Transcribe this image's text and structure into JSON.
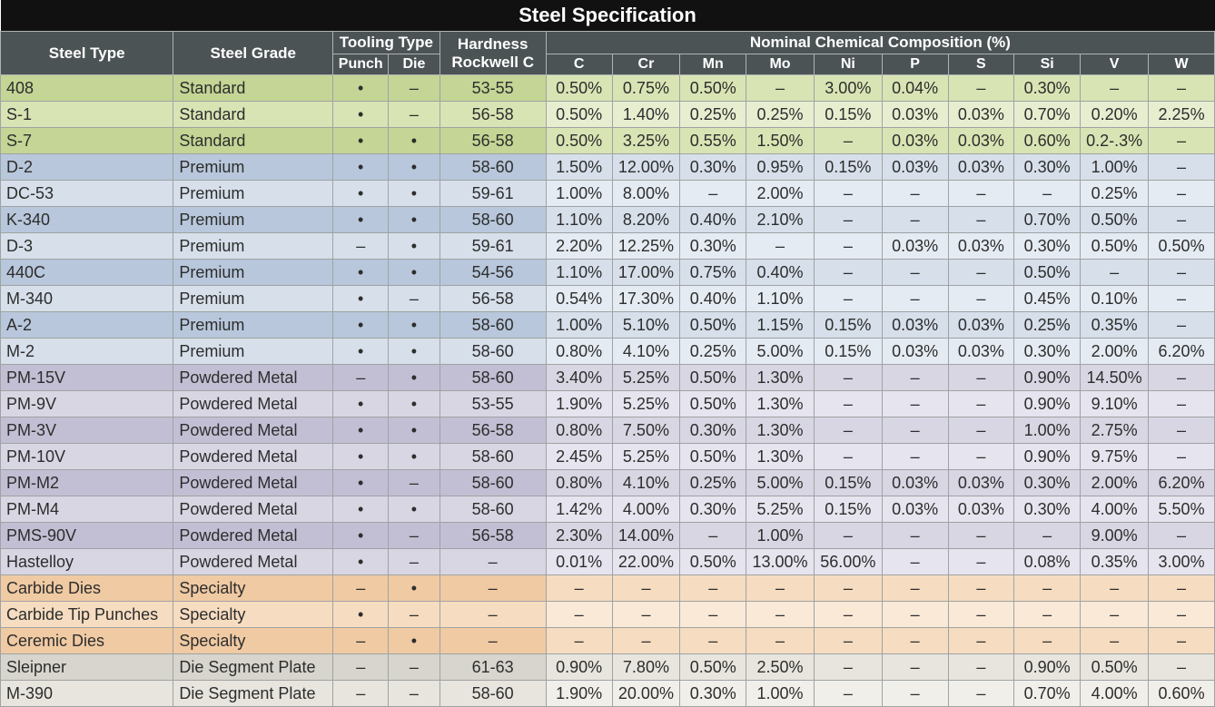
{
  "title": "Steel Specification",
  "headers": {
    "steel_type": "Steel Type",
    "steel_grade": "Steel Grade",
    "tooling_type": "Tooling Type",
    "punch": "Punch",
    "die": "Die",
    "hardness": "Hardness Rockwell C",
    "composition": "Nominal Chemical Composition (%)",
    "comp_cols": [
      "C",
      "Cr",
      "Mn",
      "Mo",
      "Ni",
      "P",
      "S",
      "Si",
      "V",
      "W"
    ]
  },
  "colors": {
    "title_bg": "#111111",
    "header_bg": "#4c5355",
    "header_text": "#ffffff",
    "border": "#9ea3a4",
    "text": "#2d2d2d",
    "grade_bg": {
      "Standard": {
        "light": "#d9e4b4",
        "dark": "#c4d595"
      },
      "Premium": {
        "light": "#d6dfea",
        "dark": "#b8c7db"
      },
      "Powdered Metal": {
        "light": "#d8d6e3",
        "dark": "#c2bfd4"
      },
      "Specialty": {
        "light": "#f6dcc0",
        "dark": "#f0caa3"
      },
      "Die Segment Plate": {
        "light": "#e7e5dd",
        "dark": "#d7d5cd"
      }
    },
    "comp_bg": {
      "Standard": {
        "light": "#e7eed0",
        "dark": "#d9e4b4"
      },
      "Premium": {
        "light": "#e5ebf3",
        "dark": "#d6dfea"
      },
      "Powdered Metal": {
        "light": "#e6e4ee",
        "dark": "#d8d6e3"
      },
      "Specialty": {
        "light": "#fae9d6",
        "dark": "#f6dcc0"
      },
      "Die Segment Plate": {
        "light": "#f1efe9",
        "dark": "#e7e5dd"
      }
    }
  },
  "bullet": "•",
  "dash": "–",
  "rows": [
    {
      "type": "408",
      "grade": "Standard",
      "punch": true,
      "die": false,
      "hardness": "53-55",
      "comp": [
        "0.50%",
        "0.75%",
        "0.50%",
        "–",
        "3.00%",
        "0.04%",
        "–",
        "0.30%",
        "–",
        "–"
      ]
    },
    {
      "type": "S-1",
      "grade": "Standard",
      "punch": true,
      "die": false,
      "hardness": "56-58",
      "comp": [
        "0.50%",
        "1.40%",
        "0.25%",
        "0.25%",
        "0.15%",
        "0.03%",
        "0.03%",
        "0.70%",
        "0.20%",
        "2.25%"
      ]
    },
    {
      "type": "S-7",
      "grade": "Standard",
      "punch": true,
      "die": true,
      "hardness": "56-58",
      "comp": [
        "0.50%",
        "3.25%",
        "0.55%",
        "1.50%",
        "–",
        "0.03%",
        "0.03%",
        "0.60%",
        "0.2-.3%",
        "–"
      ]
    },
    {
      "type": "D-2",
      "grade": "Premium",
      "punch": true,
      "die": true,
      "hardness": "58-60",
      "comp": [
        "1.50%",
        "12.00%",
        "0.30%",
        "0.95%",
        "0.15%",
        "0.03%",
        "0.03%",
        "0.30%",
        "1.00%",
        "–"
      ]
    },
    {
      "type": "DC-53",
      "grade": "Premium",
      "punch": true,
      "die": true,
      "hardness": "59-61",
      "comp": [
        "1.00%",
        "8.00%",
        "–",
        "2.00%",
        "–",
        "–",
        "–",
        "–",
        "0.25%",
        "–"
      ]
    },
    {
      "type": "K-340",
      "grade": "Premium",
      "punch": true,
      "die": true,
      "hardness": "58-60",
      "comp": [
        "1.10%",
        "8.20%",
        "0.40%",
        "2.10%",
        "–",
        "–",
        "–",
        "0.70%",
        "0.50%",
        "–"
      ]
    },
    {
      "type": "D-3",
      "grade": "Premium",
      "punch": false,
      "die": true,
      "hardness": "59-61",
      "comp": [
        "2.20%",
        "12.25%",
        "0.30%",
        "–",
        "–",
        "0.03%",
        "0.03%",
        "0.30%",
        "0.50%",
        "0.50%"
      ]
    },
    {
      "type": "440C",
      "grade": "Premium",
      "punch": true,
      "die": true,
      "hardness": "54-56",
      "comp": [
        "1.10%",
        "17.00%",
        "0.75%",
        "0.40%",
        "–",
        "–",
        "–",
        "0.50%",
        "–",
        "–"
      ]
    },
    {
      "type": "M-340",
      "grade": "Premium",
      "punch": true,
      "die": false,
      "hardness": "56-58",
      "comp": [
        "0.54%",
        "17.30%",
        "0.40%",
        "1.10%",
        "–",
        "–",
        "–",
        "0.45%",
        "0.10%",
        "–"
      ]
    },
    {
      "type": "A-2",
      "grade": "Premium",
      "punch": true,
      "die": true,
      "hardness": "58-60",
      "comp": [
        "1.00%",
        "5.10%",
        "0.50%",
        "1.15%",
        "0.15%",
        "0.03%",
        "0.03%",
        "0.25%",
        "0.35%",
        "–"
      ]
    },
    {
      "type": "M-2",
      "grade": "Premium",
      "punch": true,
      "die": true,
      "hardness": "58-60",
      "comp": [
        "0.80%",
        "4.10%",
        "0.25%",
        "5.00%",
        "0.15%",
        "0.03%",
        "0.03%",
        "0.30%",
        "2.00%",
        "6.20%"
      ]
    },
    {
      "type": "PM-15V",
      "grade": "Powdered Metal",
      "punch": false,
      "die": true,
      "hardness": "58-60",
      "comp": [
        "3.40%",
        "5.25%",
        "0.50%",
        "1.30%",
        "–",
        "–",
        "–",
        "0.90%",
        "14.50%",
        "–"
      ]
    },
    {
      "type": "PM-9V",
      "grade": "Powdered Metal",
      "punch": true,
      "die": true,
      "hardness": "53-55",
      "comp": [
        "1.90%",
        "5.25%",
        "0.50%",
        "1.30%",
        "–",
        "–",
        "–",
        "0.90%",
        "9.10%",
        "–"
      ]
    },
    {
      "type": "PM-3V",
      "grade": "Powdered Metal",
      "punch": true,
      "die": true,
      "hardness": "56-58",
      "comp": [
        "0.80%",
        "7.50%",
        "0.30%",
        "1.30%",
        "–",
        "–",
        "–",
        "1.00%",
        "2.75%",
        "–"
      ]
    },
    {
      "type": "PM-10V",
      "grade": "Powdered Metal",
      "punch": true,
      "die": true,
      "hardness": "58-60",
      "comp": [
        "2.45%",
        "5.25%",
        "0.50%",
        "1.30%",
        "–",
        "–",
        "–",
        "0.90%",
        "9.75%",
        "–"
      ]
    },
    {
      "type": "PM-M2",
      "grade": "Powdered Metal",
      "punch": true,
      "die": false,
      "hardness": "58-60",
      "comp": [
        "0.80%",
        "4.10%",
        "0.25%",
        "5.00%",
        "0.15%",
        "0.03%",
        "0.03%",
        "0.30%",
        "2.00%",
        "6.20%"
      ]
    },
    {
      "type": "PM-M4",
      "grade": "Powdered Metal",
      "punch": true,
      "die": true,
      "hardness": "58-60",
      "comp": [
        "1.42%",
        "4.00%",
        "0.30%",
        "5.25%",
        "0.15%",
        "0.03%",
        "0.03%",
        "0.30%",
        "4.00%",
        "5.50%"
      ]
    },
    {
      "type": "PMS-90V",
      "grade": "Powdered Metal",
      "punch": true,
      "die": false,
      "hardness": "56-58",
      "comp": [
        "2.30%",
        "14.00%",
        "–",
        "1.00%",
        "–",
        "–",
        "–",
        "–",
        "9.00%",
        "–"
      ]
    },
    {
      "type": "Hastelloy",
      "grade": "Powdered Metal",
      "punch": true,
      "die": false,
      "hardness": "–",
      "comp": [
        "0.01%",
        "22.00%",
        "0.50%",
        "13.00%",
        "56.00%",
        "–",
        "–",
        "0.08%",
        "0.35%",
        "3.00%"
      ]
    },
    {
      "type": "Carbide Dies",
      "grade": "Specialty",
      "punch": false,
      "die": true,
      "hardness": "–",
      "comp": [
        "–",
        "–",
        "–",
        "–",
        "–",
        "–",
        "–",
        "–",
        "–",
        "–"
      ]
    },
    {
      "type": "Carbide Tip Punches",
      "grade": "Specialty",
      "punch": true,
      "die": false,
      "hardness": "–",
      "comp": [
        "–",
        "–",
        "–",
        "–",
        "–",
        "–",
        "–",
        "–",
        "–",
        "–"
      ]
    },
    {
      "type": "Ceremic Dies",
      "grade": "Specialty",
      "punch": false,
      "die": true,
      "hardness": "–",
      "comp": [
        "–",
        "–",
        "–",
        "–",
        "–",
        "–",
        "–",
        "–",
        "–",
        "–"
      ]
    },
    {
      "type": "Sleipner",
      "grade": "Die Segment Plate",
      "punch": false,
      "die": false,
      "hardness": "61-63",
      "comp": [
        "0.90%",
        "7.80%",
        "0.50%",
        "2.50%",
        "–",
        "–",
        "–",
        "0.90%",
        "0.50%",
        "–"
      ]
    },
    {
      "type": "M-390",
      "grade": "Die Segment Plate",
      "punch": false,
      "die": false,
      "hardness": "58-60",
      "comp": [
        "1.90%",
        "20.00%",
        "0.30%",
        "1.00%",
        "–",
        "–",
        "–",
        "0.70%",
        "4.00%",
        "0.60%"
      ]
    }
  ]
}
